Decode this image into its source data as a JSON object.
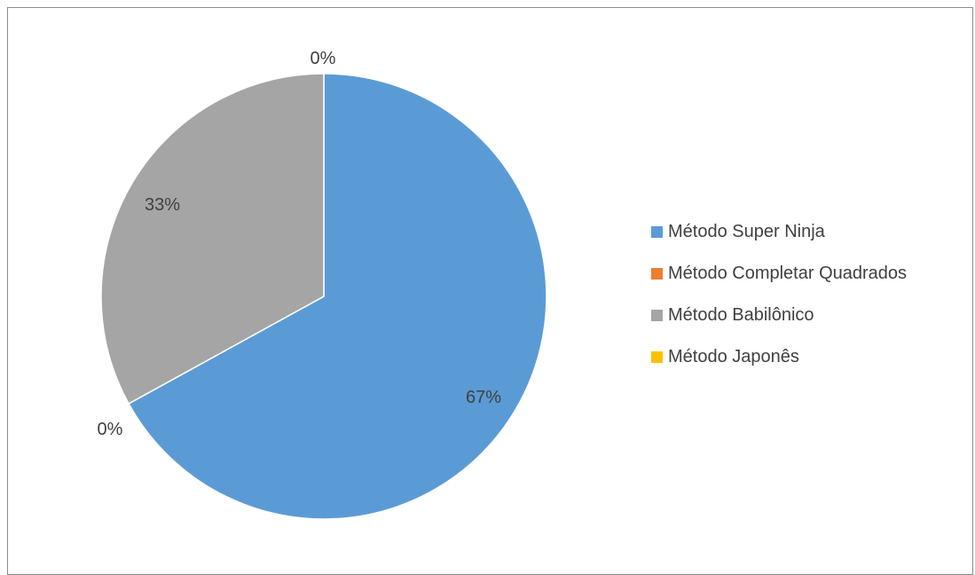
{
  "chart_data": {
    "type": "pie",
    "title": "",
    "categories": [
      "Método Super Ninja",
      "Método Completar Quadrados",
      "Método Babilônico",
      "Método Japonês"
    ],
    "values": [
      67,
      0,
      33,
      0
    ],
    "data_labels": [
      "67%",
      "0%",
      "33%",
      "0%"
    ],
    "colors": [
      "#5B9BD5",
      "#ED7D31",
      "#A5A5A5",
      "#FFC000"
    ],
    "start_angle_deg": 0,
    "direction": "clockwise",
    "legend_position": "right"
  }
}
